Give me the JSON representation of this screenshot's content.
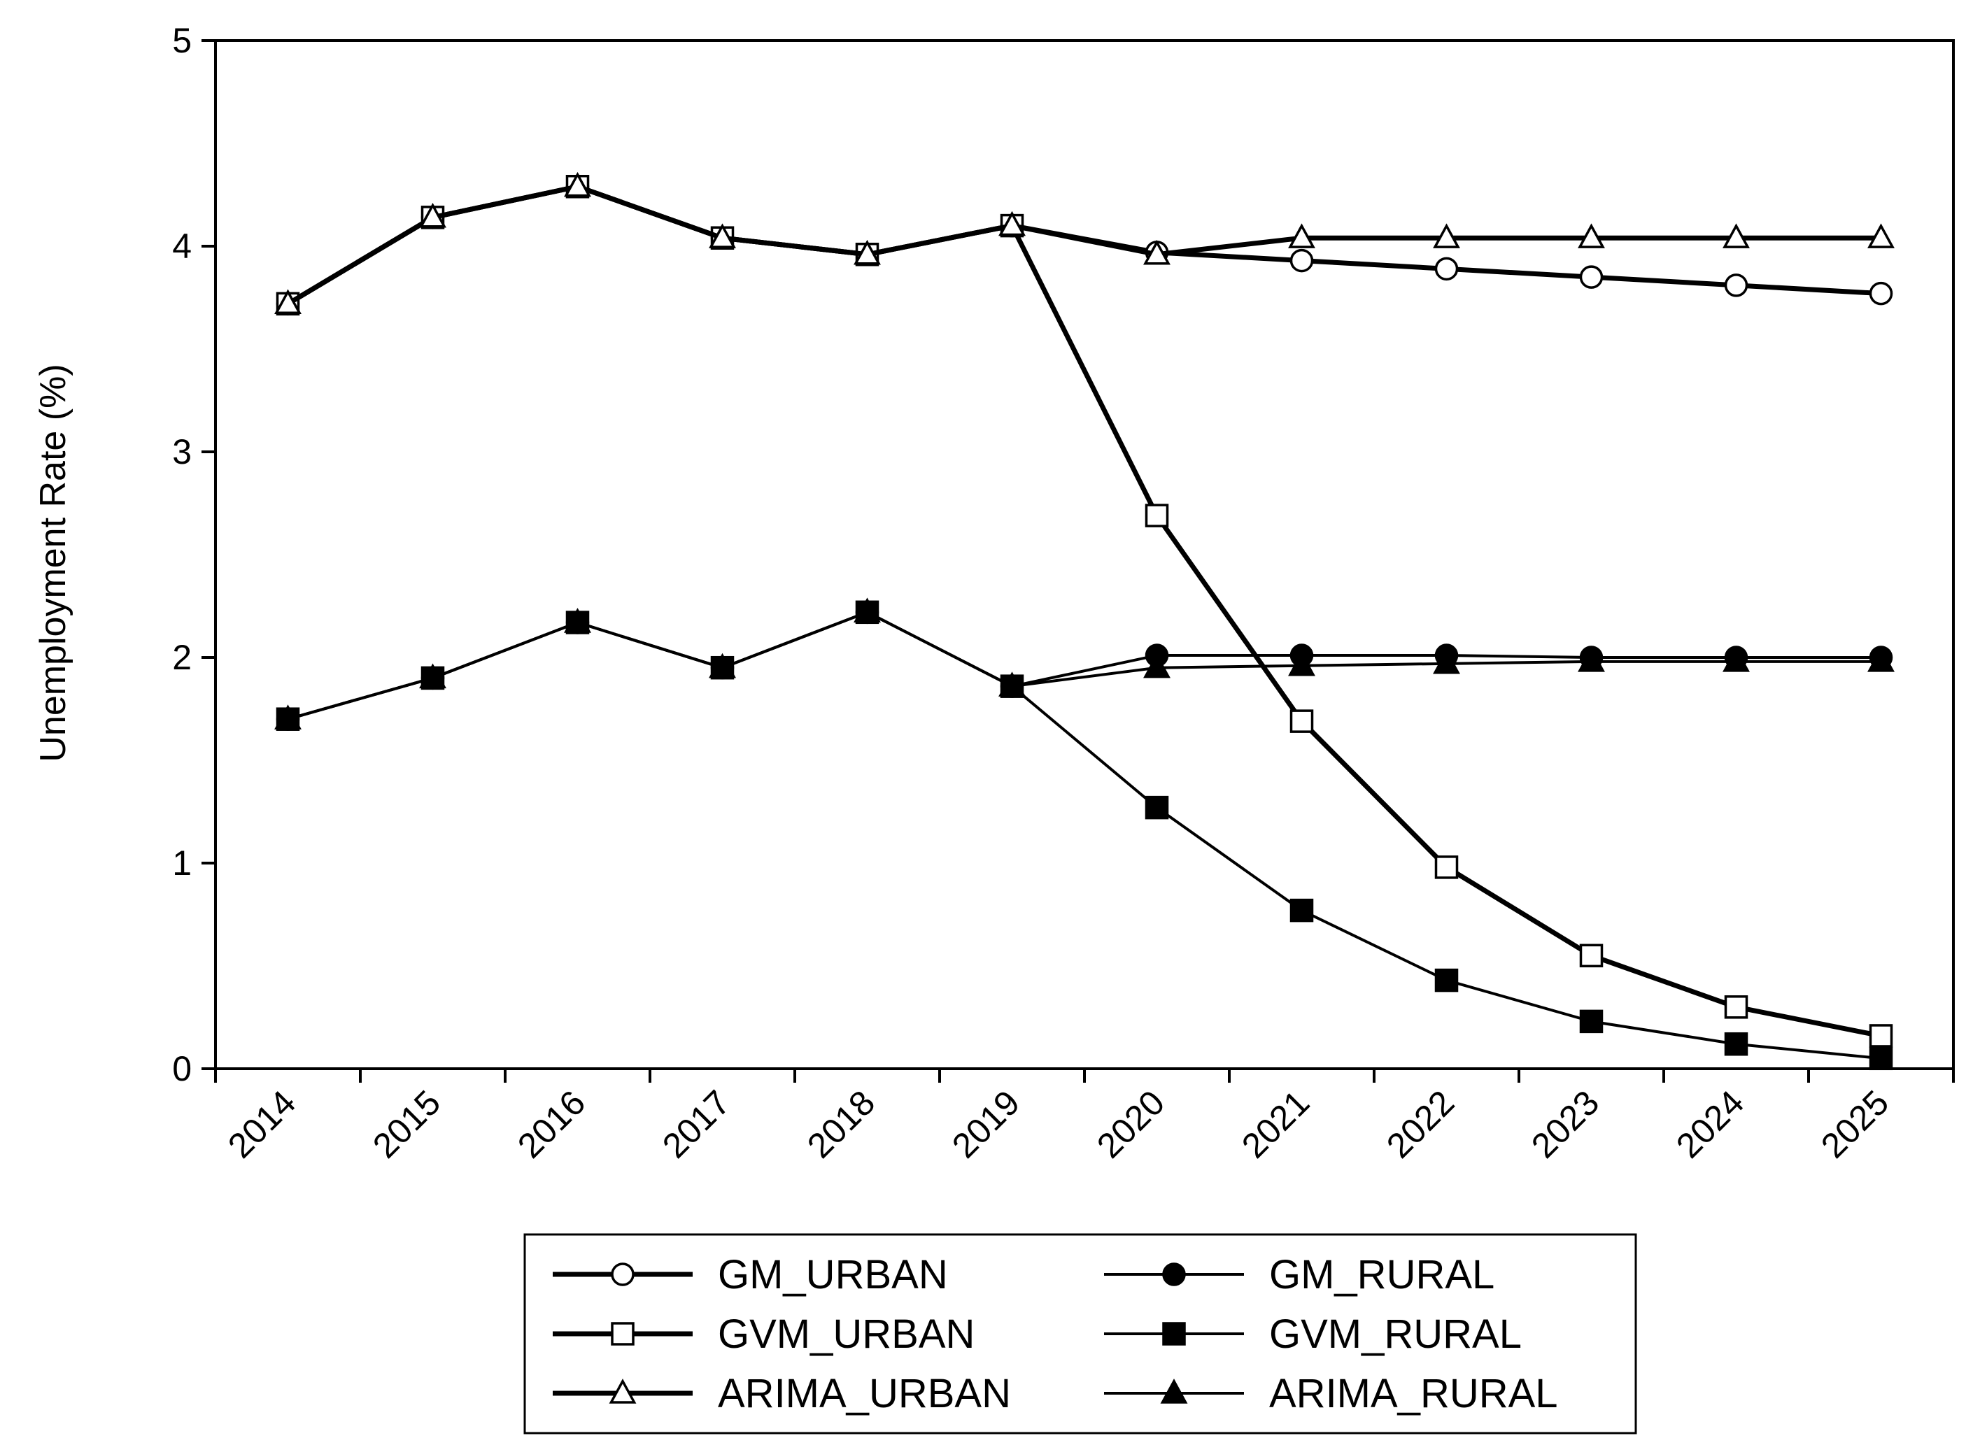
{
  "chart_data": {
    "type": "line",
    "title": "",
    "xlabel": "",
    "ylabel": "Unemployment Rate (%)",
    "ylim": [
      0,
      5
    ],
    "yticks": [
      "0",
      "1",
      "2",
      "3",
      "4",
      "5"
    ],
    "categories": [
      "2014",
      "2015",
      "2016",
      "2017",
      "2018",
      "2019",
      "2020",
      "2021",
      "2022",
      "2023",
      "2024",
      "2025"
    ],
    "legend_position": "bottom",
    "grid": false,
    "series": [
      {
        "name": "GM_URBAN",
        "marker": "circle",
        "filled": false,
        "weight": "thick",
        "values": [
          3.72,
          4.14,
          4.29,
          4.04,
          3.96,
          4.1,
          3.97,
          3.93,
          3.89,
          3.85,
          3.81,
          3.77
        ]
      },
      {
        "name": "GVM_URBAN",
        "marker": "square",
        "filled": false,
        "weight": "thick",
        "values": [
          3.72,
          4.14,
          4.29,
          4.04,
          3.96,
          4.1,
          2.69,
          1.69,
          0.98,
          0.55,
          0.3,
          0.16
        ]
      },
      {
        "name": "ARIMA_URBAN",
        "marker": "triangle",
        "filled": false,
        "weight": "thick",
        "values": [
          3.72,
          4.14,
          4.29,
          4.04,
          3.96,
          4.1,
          3.96,
          4.04,
          4.04,
          4.04,
          4.04,
          4.04
        ]
      },
      {
        "name": "GM_RURAL",
        "marker": "circle",
        "filled": true,
        "weight": "thin",
        "values": [
          1.7,
          1.9,
          2.17,
          1.95,
          2.22,
          1.86,
          2.01,
          2.01,
          2.01,
          2.0,
          2.0,
          2.0
        ]
      },
      {
        "name": "GVM_RURAL",
        "marker": "square",
        "filled": true,
        "weight": "thin",
        "values": [
          1.7,
          1.9,
          2.17,
          1.95,
          2.22,
          1.86,
          1.27,
          0.77,
          0.43,
          0.23,
          0.12,
          0.05
        ]
      },
      {
        "name": "ARIMA_RURAL",
        "marker": "triangle",
        "filled": true,
        "weight": "thin",
        "values": [
          1.7,
          1.9,
          2.17,
          1.95,
          2.22,
          1.86,
          1.95,
          1.96,
          1.97,
          1.98,
          1.98,
          1.98
        ]
      }
    ],
    "legend_order": [
      "GM_URBAN",
      "GM_RURAL",
      "GVM_URBAN",
      "GVM_RURAL",
      "ARIMA_URBAN",
      "ARIMA_RURAL"
    ]
  }
}
